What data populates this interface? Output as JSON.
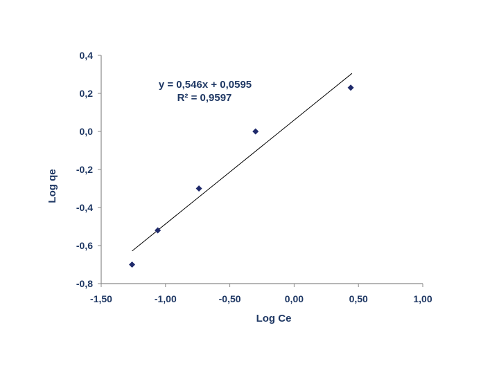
{
  "chart_data": {
    "type": "scatter",
    "xlabel": "Log Ce",
    "ylabel": "Log qe",
    "xlim": [
      -1.5,
      1.0
    ],
    "ylim": [
      -0.8,
      0.4
    ],
    "x_ticks": [
      -1.5,
      -1.0,
      -0.5,
      0.0,
      0.5,
      1.0
    ],
    "x_tick_labels": [
      "-1,50",
      "-1,00",
      "-0,50",
      "0,00",
      "0,50",
      "1,00"
    ],
    "y_ticks": [
      0.4,
      0.2,
      0.0,
      -0.2,
      -0.4,
      -0.6,
      -0.8
    ],
    "y_tick_labels": [
      "0,4",
      "0,2",
      "0,0",
      "-0,2",
      "-0,4",
      "-0,6",
      "-0,8"
    ],
    "grid": false,
    "series": [
      {
        "points": [
          {
            "x": -1.26,
            "y": -0.7
          },
          {
            "x": -1.06,
            "y": -0.52
          },
          {
            "x": -0.74,
            "y": -0.3
          },
          {
            "x": -0.3,
            "y": 0.0
          },
          {
            "x": 0.44,
            "y": 0.23
          }
        ],
        "marker": "diamond",
        "color": "#1f2a6b"
      }
    ],
    "trendline": {
      "slope": 0.546,
      "intercept": 0.0595,
      "x_range": [
        -1.26,
        0.45
      ],
      "color": "#000000"
    },
    "annotations": {
      "equation": "y = 0,546x + 0,0595",
      "r_squared": "R² = 0,9597"
    }
  }
}
